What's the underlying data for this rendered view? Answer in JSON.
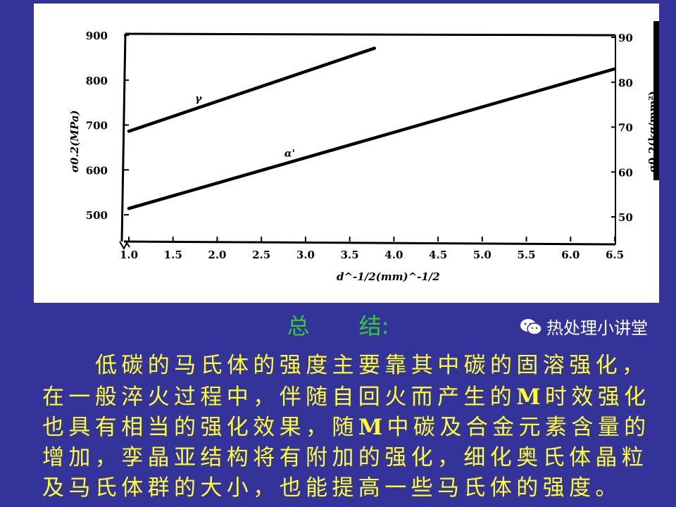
{
  "chart_data": {
    "type": "line",
    "xlabel": "d^-1/2(mm)^-1/2",
    "ylabel": "σ0.2(MPa)",
    "ylabel_right": "σ0.2(kg/mm²)",
    "xlim": [
      1.0,
      6.5
    ],
    "ylim": [
      500,
      900
    ],
    "ylim_right": [
      50,
      90
    ],
    "x_ticks": [
      "1.0",
      "1.5",
      "2.0",
      "2.5",
      "3.0",
      "3.5",
      "4.0",
      "4.5",
      "5.0",
      "5.5",
      "6.0",
      "6.5"
    ],
    "y_ticks": [
      "500",
      "600",
      "700",
      "800",
      "900"
    ],
    "y_ticks_right": [
      "50",
      "60",
      "70",
      "80",
      "90"
    ],
    "grid": false,
    "series": [
      {
        "name": "γ",
        "points": [
          [
            1.0,
            686
          ],
          [
            3.78,
            871
          ]
        ]
      },
      {
        "name": "α'",
        "points": [
          [
            1.0,
            514
          ],
          [
            6.5,
            825
          ]
        ]
      }
    ],
    "line_color": "#000000"
  },
  "summary": {
    "title_a": "总",
    "title_b": "结:"
  },
  "body_lines": [
    "低碳的马氏体的强度主要靠其中碳的固溶强化，",
    "在一般淬火过程中，伴随自回火而产生的M时效强化",
    "也具有相当的强化效果，随M中碳及合金元素含量的",
    "增加，孪晶亚结构将有附加的强化，细化奥氏体晶粒",
    "及马氏体群的大小，也能提高一些马氏体的强度。"
  ],
  "watermark": {
    "text": "热处理小讲堂",
    "icon": "wechat-icon"
  },
  "colors": {
    "background": "#333399",
    "title": "#33cc33",
    "body": "#ffff33"
  }
}
